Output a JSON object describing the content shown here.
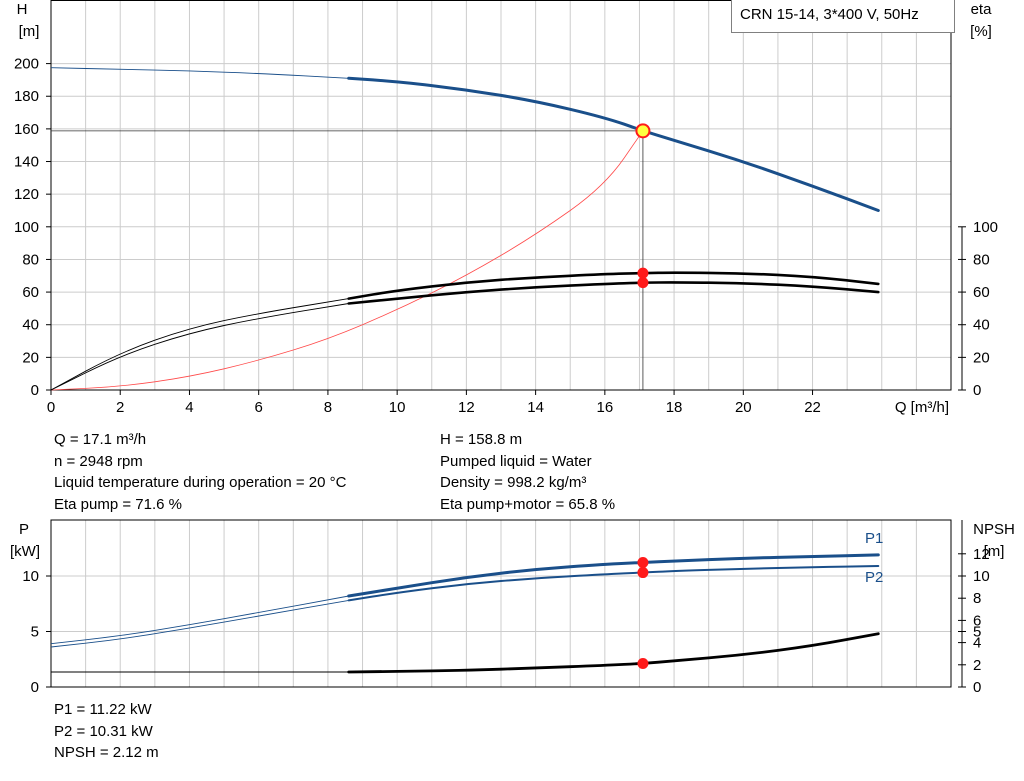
{
  "title_box": "CRN 15-14, 3*400 V, 50Hz",
  "top_chart": {
    "left_axis_label": [
      "H",
      "[m]"
    ],
    "right_axis_label": [
      "eta",
      "[%]"
    ],
    "x_axis_label": "Q [m³/h]"
  },
  "bottom_chart": {
    "left_axis_label": [
      "P",
      "[kW]"
    ],
    "right_axis_label": [
      "NPSH",
      "[m]"
    ],
    "p1_label": "P1",
    "p2_label": "P2"
  },
  "info_left": [
    "Q = 17.1 m³/h",
    "n = 2948 rpm",
    "Liquid temperature during operation = 20 °C",
    "Eta pump = 71.6 %"
  ],
  "info_right": [
    "H = 158.8 m",
    "Pumped liquid = Water",
    "Density = 998.2 kg/m³",
    "Eta pump+motor = 65.8 %"
  ],
  "info_bottom": [
    "P1 = 11.22 kW",
    "P2 = 10.31 kW",
    "NPSH = 2.12 m"
  ],
  "colors": {
    "head": "#1a4f8a",
    "efficiency": "#000000",
    "system": "#ff4a4a",
    "power": "#1a4f8a",
    "npsh": "#000000",
    "duty_point": "#ff1a1a",
    "duty_point_head_fill": "#ffff40",
    "grid": "#cccccc"
  },
  "chart_data": [
    {
      "type": "line",
      "name": "head_efficiency",
      "xlabel": "Q [m³/h]",
      "ylabel": "H [m]",
      "y2label": "eta [%]",
      "xlim": [
        0,
        26
      ],
      "x_ticks": [
        0,
        2,
        4,
        6,
        8,
        10,
        12,
        14,
        16,
        18,
        20,
        22
      ],
      "ylim": [
        0,
        200
      ],
      "y_ticks": [
        0,
        20,
        40,
        60,
        80,
        100,
        120,
        140,
        160,
        180,
        200
      ],
      "y2lim": [
        0,
        100
      ],
      "y2_ticks": [
        0,
        20,
        40,
        60,
        80,
        100
      ],
      "grid": true,
      "series": [
        {
          "key": "head",
          "x": [
            0,
            2,
            4,
            6,
            8.6,
            10,
            12,
            14,
            16,
            17.1,
            18,
            20,
            22,
            23.9
          ],
          "y": [
            197.5,
            196.5,
            195.5,
            194,
            191,
            189,
            184,
            177,
            167,
            158.8,
            153,
            140,
            125,
            110
          ],
          "thick_from": 8.6
        },
        {
          "key": "eta_pump",
          "axis": "y2",
          "x": [
            0,
            2,
            4,
            6,
            8.6,
            10,
            12,
            14,
            16,
            17.1,
            18,
            20,
            22,
            23.9
          ],
          "y": [
            0,
            23,
            38,
            47,
            56,
            61,
            66,
            69,
            71,
            71.6,
            72,
            71.5,
            69.5,
            65
          ],
          "thick_from": 8.6
        },
        {
          "key": "eta_pump_motor",
          "axis": "y2",
          "x": [
            0,
            2,
            4,
            6,
            8.6,
            10,
            12,
            14,
            16,
            17.1,
            18,
            20,
            22,
            23.9
          ],
          "y": [
            0,
            21,
            35,
            44,
            53,
            56,
            60,
            63,
            65,
            65.8,
            66,
            65.5,
            63.5,
            60
          ],
          "thick_from": 8.6
        },
        {
          "key": "system",
          "x": [
            0,
            2,
            4,
            6,
            8,
            10,
            12,
            14,
            16,
            17.1
          ],
          "y": [
            0,
            2,
            8,
            18,
            31,
            49,
            70,
            95,
            125,
            158.8
          ]
        }
      ],
      "duty_point": {
        "x": 17.1,
        "h": 158.8,
        "eta_pump": 71.6,
        "eta_pump_motor": 65.8
      }
    },
    {
      "type": "line",
      "name": "power_npsh",
      "ylabel": "P [kW]",
      "y2label": "NPSH [m]",
      "xlim": [
        0,
        26
      ],
      "ylim": [
        0,
        13
      ],
      "y_ticks": [
        0,
        5,
        10
      ],
      "y2lim": [
        0,
        13
      ],
      "y2_ticks": [
        0,
        2,
        4,
        5,
        6,
        8,
        10,
        12
      ],
      "grid": true,
      "series": [
        {
          "key": "P1",
          "x": [
            0,
            2,
            4,
            6,
            8.6,
            10,
            12,
            14,
            16,
            17.1,
            18,
            20,
            22,
            23.9
          ],
          "y": [
            3.9,
            4.6,
            5.6,
            6.7,
            8.2,
            8.9,
            9.9,
            10.6,
            11.05,
            11.22,
            11.35,
            11.6,
            11.75,
            11.9
          ],
          "thick_from": 8.6
        },
        {
          "key": "P2",
          "x": [
            0,
            2,
            4,
            6,
            8.6,
            10,
            12,
            14,
            16,
            17.1,
            18,
            20,
            22,
            23.9
          ],
          "y": [
            3.6,
            4.3,
            5.3,
            6.4,
            7.8,
            8.5,
            9.3,
            9.8,
            10.15,
            10.31,
            10.45,
            10.65,
            10.8,
            10.9
          ],
          "thick_from": 8.6
        },
        {
          "key": "NPSH",
          "axis": "y2",
          "x": [
            0,
            8.6,
            10,
            12,
            14,
            16,
            17.1,
            18,
            20,
            22,
            23.9
          ],
          "y": [
            1.35,
            1.35,
            1.4,
            1.5,
            1.7,
            1.95,
            2.12,
            2.35,
            2.9,
            3.7,
            4.8
          ],
          "thick_from": 8.6
        }
      ],
      "duty_point": {
        "x": 17.1,
        "P1": 11.22,
        "P2": 10.31,
        "NPSH": 2.12
      }
    }
  ]
}
